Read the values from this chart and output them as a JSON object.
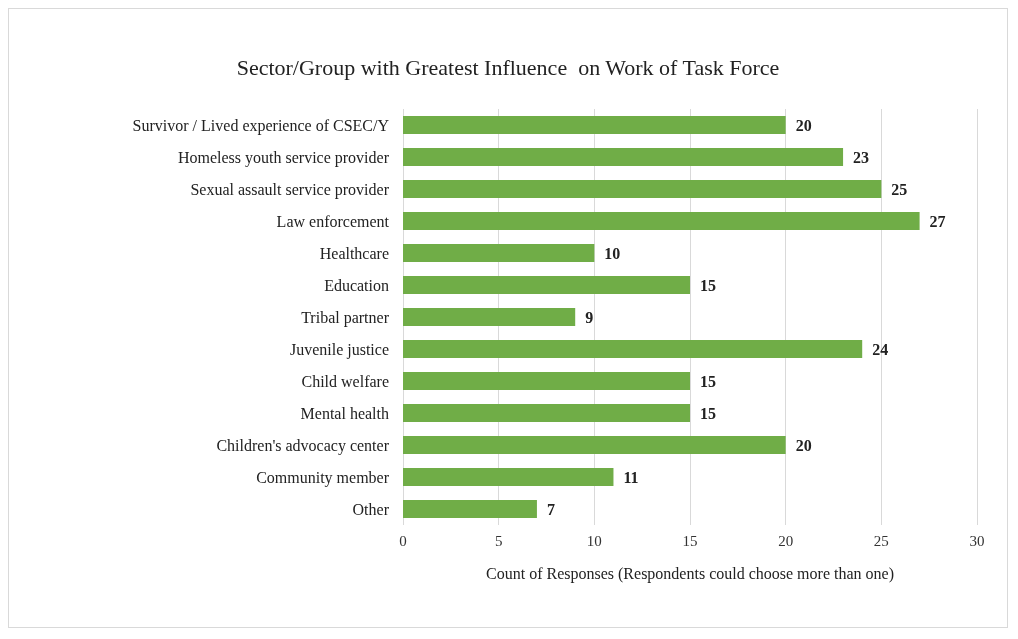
{
  "chart_data": {
    "type": "bar",
    "orientation": "horizontal",
    "title": "Sector/Group with Greatest Influence  on Work of Task Force",
    "xlabel": "Count of Responses (Respondents could choose more than one)",
    "categories": [
      "Survivor / Lived experience of CSEC/Y",
      "Homeless youth service provider",
      "Sexual assault service provider",
      "Law enforcement",
      "Healthcare",
      "Education",
      "Tribal partner",
      "Juvenile justice",
      "Child welfare",
      "Mental health",
      "Children's advocacy center",
      "Community member",
      "Other"
    ],
    "values": [
      20,
      23,
      25,
      27,
      10,
      15,
      9,
      24,
      15,
      15,
      20,
      11,
      7
    ],
    "color": "#70ad47",
    "xlim": [
      0,
      30
    ],
    "xticks": [
      0,
      5,
      10,
      15,
      20,
      25,
      30
    ],
    "grid": "x",
    "data_labels": true
  }
}
